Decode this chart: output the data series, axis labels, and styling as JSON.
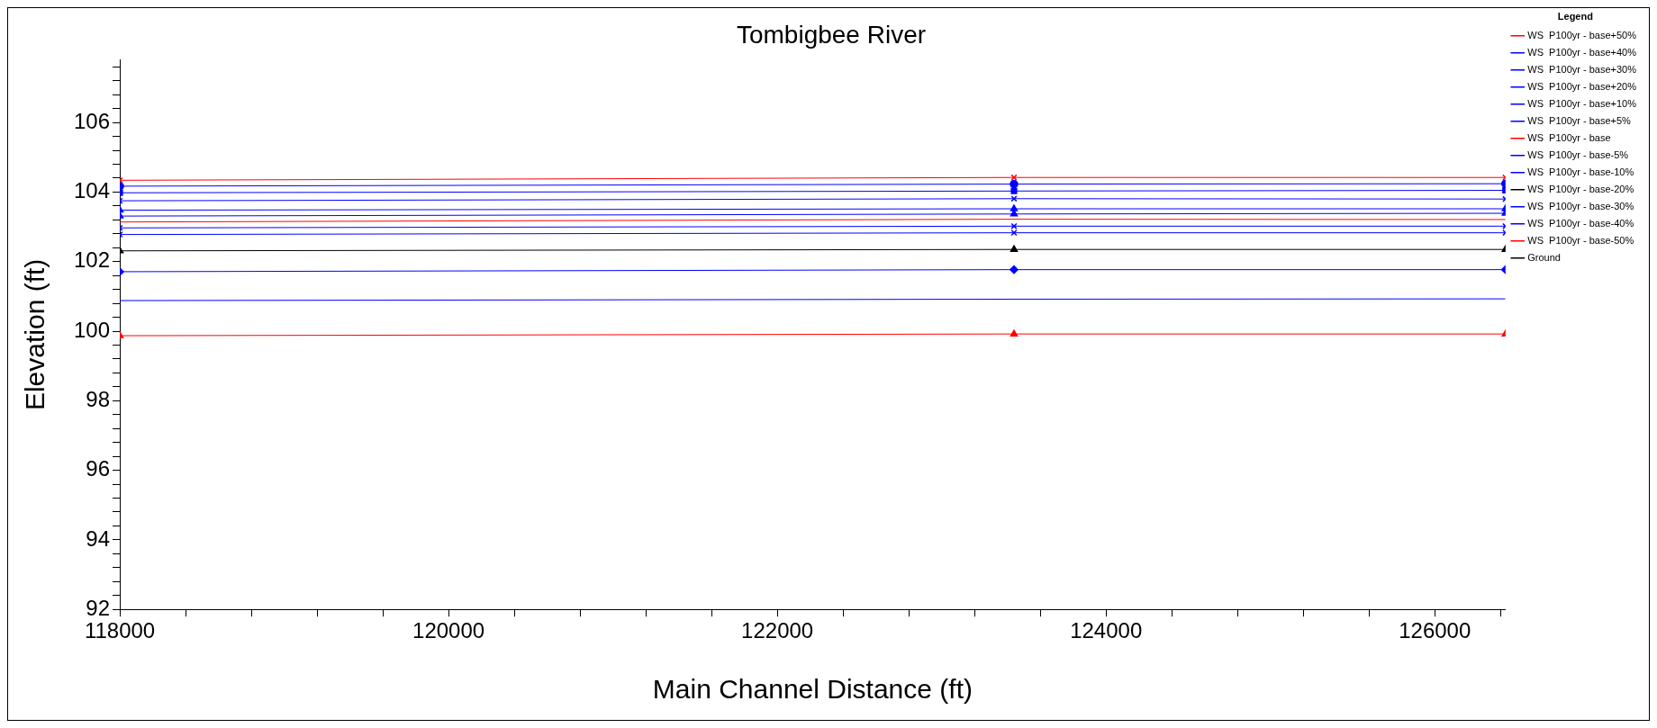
{
  "chart_data": {
    "type": "line",
    "title": "Tombigbee River",
    "xlabel": "Main Channel Distance (ft)",
    "ylabel": "Elevation (ft)",
    "legend_title": "Legend",
    "legend": "top right",
    "grid": false,
    "x": [
      118000,
      123440,
      126430
    ],
    "xlim": [
      118000,
      126430
    ],
    "xticks": [
      118000,
      {
        "value": 118400,
        "label": null
      },
      {
        "value": 118800,
        "label": null
      },
      {
        "value": 119200,
        "label": null
      },
      {
        "value": 119600,
        "label": null
      },
      120000,
      {
        "value": 120400,
        "label": null
      },
      {
        "value": 120800,
        "label": null
      },
      {
        "value": 121200,
        "label": null
      },
      {
        "value": 121600,
        "label": null
      },
      122000,
      {
        "value": 122400,
        "label": null
      },
      {
        "value": 122800,
        "label": null
      },
      {
        "value": 123200,
        "label": null
      },
      {
        "value": 123600,
        "label": null
      },
      124000,
      {
        "value": 124400,
        "label": null
      },
      {
        "value": 124800,
        "label": null
      },
      {
        "value": 125200,
        "label": null
      },
      {
        "value": 125600,
        "label": null
      },
      126000,
      {
        "value": 126400,
        "label": null
      }
    ],
    "ylim": [
      92,
      107.8
    ],
    "yticks": [
      92,
      {
        "value": 92.4,
        "label": null
      },
      {
        "value": 92.8,
        "label": null
      },
      {
        "value": 93.2,
        "label": null
      },
      {
        "value": 93.6,
        "label": null
      },
      94,
      {
        "value": 94.4,
        "label": null
      },
      {
        "value": 94.8,
        "label": null
      },
      {
        "value": 95.2,
        "label": null
      },
      {
        "value": 95.6,
        "label": null
      },
      96,
      {
        "value": 96.4,
        "label": null
      },
      {
        "value": 96.8,
        "label": null
      },
      {
        "value": 97.2,
        "label": null
      },
      {
        "value": 97.6,
        "label": null
      },
      98,
      {
        "value": 98.4,
        "label": null
      },
      {
        "value": 98.8,
        "label": null
      },
      {
        "value": 99.2,
        "label": null
      },
      {
        "value": 99.6,
        "label": null
      },
      100,
      {
        "value": 100.4,
        "label": null
      },
      {
        "value": 100.8,
        "label": null
      },
      {
        "value": 101.2,
        "label": null
      },
      {
        "value": 101.6,
        "label": null
      },
      102,
      {
        "value": 102.4,
        "label": null
      },
      {
        "value": 102.8,
        "label": null
      },
      {
        "value": 103.2,
        "label": null
      },
      {
        "value": 103.6,
        "label": null
      },
      104,
      {
        "value": 104.4,
        "label": null
      },
      {
        "value": 104.8,
        "label": null
      },
      {
        "value": 105.2,
        "label": null
      },
      {
        "value": 105.6,
        "label": null
      },
      106,
      {
        "value": 106.4,
        "label": null
      },
      {
        "value": 106.8,
        "label": null
      },
      {
        "value": 107.2,
        "label": null
      },
      {
        "value": 107.6,
        "label": null
      }
    ],
    "series": [
      {
        "name": "WS  P100yr - base+50%",
        "color": "#ff0000",
        "marker": "cross",
        "values": [
          104.34,
          104.42,
          104.42
        ]
      },
      {
        "name": "WS  P100yr - base+40%",
        "color": "#0000ff",
        "marker": "circle",
        "values": [
          104.17,
          104.23,
          104.24
        ]
      },
      {
        "name": "WS  P100yr - base+30%",
        "color": "#0000ff",
        "marker": "square",
        "values": [
          103.98,
          104.03,
          104.05
        ]
      },
      {
        "name": "WS  P100yr - base+20%",
        "color": "#0000ff",
        "marker": "cross",
        "values": [
          103.75,
          103.81,
          103.8
        ]
      },
      {
        "name": "WS  P100yr - base+10%",
        "color": "#0000ff",
        "marker": "triangle",
        "values": [
          103.48,
          103.52,
          103.52
        ]
      },
      {
        "name": "WS  P100yr - base+5%",
        "color": "#0000ff",
        "marker": "triangle",
        "values": [
          103.31,
          103.37,
          103.39
        ]
      },
      {
        "name": "WS  P100yr - base",
        "color": "#ff0000",
        "marker": "none",
        "values": [
          103.14,
          103.22,
          103.21
        ]
      },
      {
        "name": "WS  P100yr - base-5%",
        "color": "#0000ff",
        "marker": "cross",
        "values": [
          102.97,
          103.02,
          103.02
        ]
      },
      {
        "name": "WS  P100yr - base-10%",
        "color": "#0000ff",
        "marker": "cross",
        "values": [
          102.78,
          102.83,
          102.83
        ]
      },
      {
        "name": "WS  P100yr - base-20%",
        "color": "#000000",
        "marker": "triangle",
        "values": [
          102.31,
          102.35,
          102.35
        ]
      },
      {
        "name": "WS  P100yr - base-30%",
        "color": "#0000ff",
        "marker": "diamond",
        "values": [
          101.71,
          101.77,
          101.77
        ]
      },
      {
        "name": "WS  P100yr - base-40%",
        "color": "#0000ff",
        "marker": "none",
        "values": [
          100.88,
          100.92,
          100.93
        ]
      },
      {
        "name": "WS  P100yr - base-50%",
        "color": "#ff0000",
        "marker": "triangle",
        "values": [
          99.87,
          99.92,
          99.92
        ]
      },
      {
        "name": "Ground",
        "color": "#000000",
        "marker": "square",
        "values": [
          null,
          null,
          null
        ]
      }
    ]
  }
}
